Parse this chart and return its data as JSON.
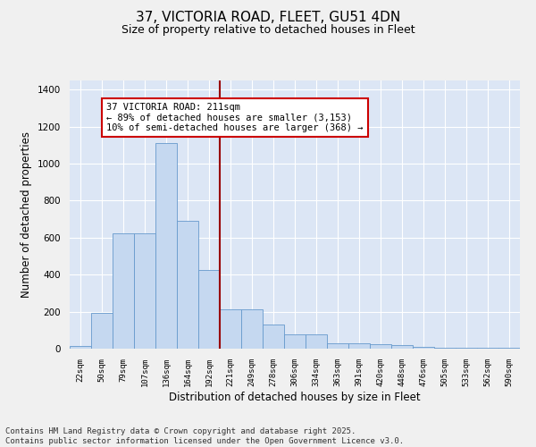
{
  "title_line1": "37, VICTORIA ROAD, FLEET, GU51 4DN",
  "title_line2": "Size of property relative to detached houses in Fleet",
  "xlabel": "Distribution of detached houses by size in Fleet",
  "ylabel": "Number of detached properties",
  "categories": [
    "22sqm",
    "50sqm",
    "79sqm",
    "107sqm",
    "136sqm",
    "164sqm",
    "192sqm",
    "221sqm",
    "249sqm",
    "278sqm",
    "306sqm",
    "334sqm",
    "363sqm",
    "391sqm",
    "420sqm",
    "448sqm",
    "476sqm",
    "505sqm",
    "533sqm",
    "562sqm",
    "590sqm"
  ],
  "values": [
    15,
    195,
    625,
    625,
    1110,
    690,
    425,
    215,
    215,
    130,
    75,
    75,
    30,
    30,
    25,
    18,
    12,
    7,
    3,
    3,
    3
  ],
  "bar_color": "#c5d8f0",
  "bar_edge_color": "#6699cc",
  "vertical_line_index": 7,
  "vertical_line_color": "#990000",
  "annotation_text": "37 VICTORIA ROAD: 211sqm\n← 89% of detached houses are smaller (3,153)\n10% of semi-detached houses are larger (368) →",
  "annotation_box_color": "#ffffff",
  "annotation_box_edge_color": "#cc0000",
  "ylim": [
    0,
    1450
  ],
  "yticks": [
    0,
    200,
    400,
    600,
    800,
    1000,
    1200,
    1400
  ],
  "background_color": "#dce6f5",
  "grid_color": "#ffffff",
  "footer_line1": "Contains HM Land Registry data © Crown copyright and database right 2025.",
  "footer_line2": "Contains public sector information licensed under the Open Government Licence v3.0.",
  "title_fontsize": 11,
  "subtitle_fontsize": 9,
  "annotation_fontsize": 7.5,
  "footer_fontsize": 6.5
}
